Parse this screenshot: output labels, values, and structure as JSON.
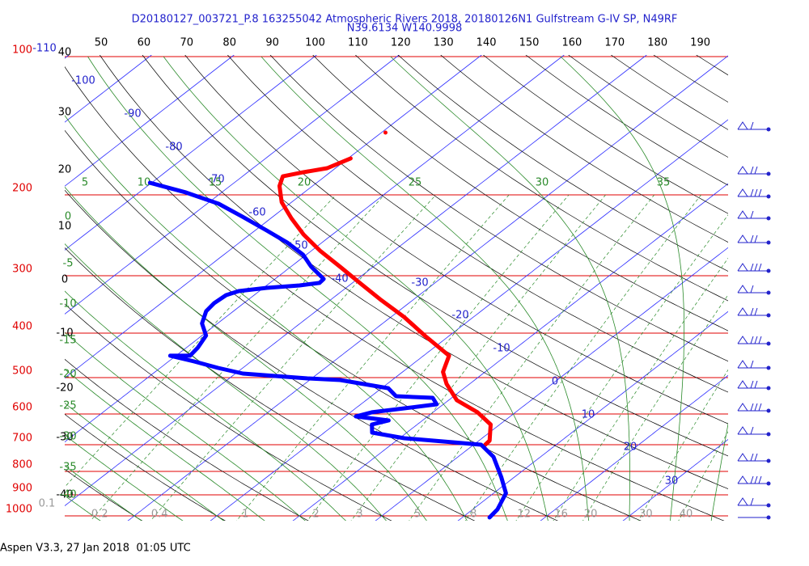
{
  "chart_data": {
    "type": "skew-t",
    "title": "D20180127_003721_P.8 163255042 Atmospheric Rivers 2018, 20180126N1 Gulfstream G-IV SP, N49RF",
    "subtitle": "N39.6134 W140.9998",
    "footer": "Aspen V3.3, 27 Jan 2018  01:05 UTC",
    "log_y": true,
    "ylim": [
      100,
      1000
    ],
    "yticks": [
      100,
      200,
      300,
      400,
      500,
      600,
      700,
      800,
      900,
      1000
    ],
    "isotherm_labels": [
      -110,
      -100,
      -90,
      -80,
      -70,
      -60,
      -50,
      -40,
      -30,
      -20,
      -10,
      0,
      10,
      20,
      30
    ],
    "dry_adiabat_labels_top": [
      50,
      60,
      70,
      80,
      90,
      100,
      110,
      120,
      130,
      140,
      150,
      160,
      170,
      180,
      190
    ],
    "dry_adiabat_labels_left": [
      40,
      30,
      20,
      10,
      0,
      -10,
      -20,
      -30,
      -40
    ],
    "moist_adiabat_labels_top": [
      5,
      10,
      15,
      20,
      25,
      30,
      35
    ],
    "moist_adiabat_labels_left": [
      0,
      -5,
      -10,
      -15,
      -20,
      -25,
      -30,
      -35,
      -40
    ],
    "mixing_ratio_labels": [
      0.1,
      0.2,
      0.4,
      1,
      2,
      3,
      5,
      8,
      12,
      16,
      20,
      30,
      40
    ],
    "series": [
      {
        "color": "#ff0000",
        "pressure": [
          146.4,
          null,
          166.6,
          175,
          178.6,
          182.3,
          191.3,
          207.5,
          225,
          244,
          264.5,
          286.9,
          311,
          337.5,
          369,
          405,
          448,
          486,
          516,
          560,
          595,
          632.5,
          686,
          700
        ],
        "values": [
          -59.5,
          null,
          -59.7,
          -61.0,
          -63.3,
          -65.1,
          -64.0,
          -61.2,
          -57.5,
          -53.5,
          -49.0,
          -44.0,
          -39.1,
          -34.1,
          -28.4,
          -23.0,
          -16.9,
          -15.1,
          -12.8,
          -9.0,
          -4.6,
          -1.1,
          1.3,
          1.4
        ]
      },
      {
        "color": "#0000ff",
        "pressure": [
          188.3,
          197.7,
          209.1,
          223.1,
          239.1,
          254.1,
          270,
          286.9,
          304.9,
          311,
          315,
          318.8,
          324,
          330.6,
          344.4,
          358.5,
          381,
          405,
          430.4,
          448,
          448,
          461.1,
          476.2,
          490,
          502,
          506.1,
          527.2,
          548.8,
          553.3,
          571.6,
          583.3,
          595,
          607.4,
          619.9,
          632.5,
          658.7,
          677.7,
          691.5,
          700,
          743.8,
          823.2,
          892.7,
          968.1,
          1008.1
        ],
        "values": [
          -80.2,
          -74.3,
          -68.6,
          -63.7,
          -58.6,
          -54.2,
          -50.4,
          -47.5,
          -44.1,
          -44.0,
          -46.0,
          -49.6,
          -52.5,
          -53.4,
          -53.6,
          -53.3,
          -51.9,
          -49.5,
          -48.6,
          -48.3,
          -50.7,
          -46.9,
          -43.0,
          -39.1,
          -30.5,
          -26.3,
          -19.2,
          -17.0,
          -12.3,
          -10.8,
          -14.1,
          -17.4,
          -18.7,
          -14.1,
          -15.5,
          -14.2,
          -9.4,
          -2.9,
          0.9,
          4.3,
          8.4,
          11.5,
          13.0,
          13.3
        ]
      }
    ]
  }
}
